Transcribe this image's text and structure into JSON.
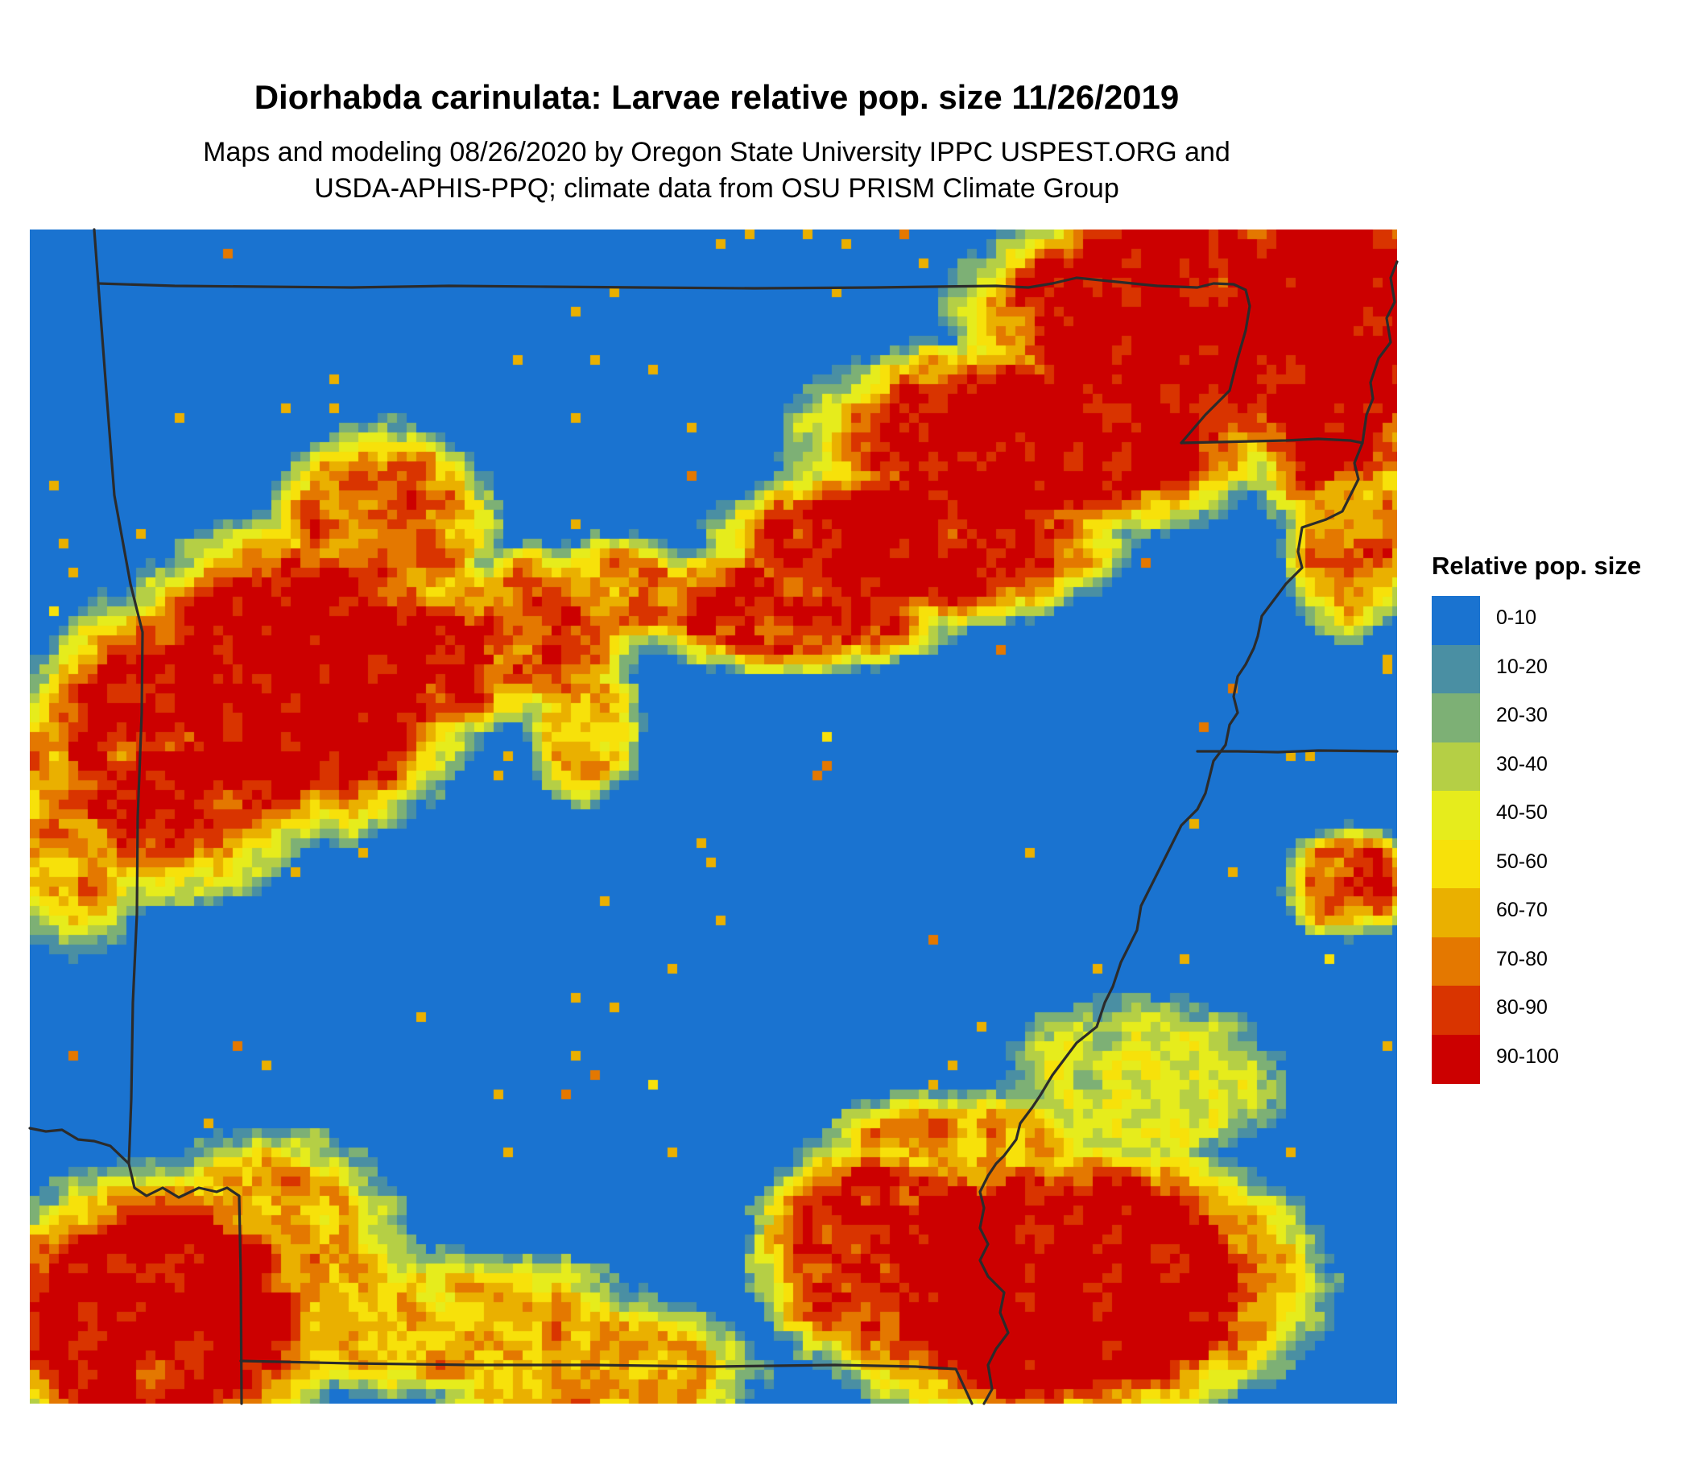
{
  "title": "Diorhabda carinulata: Larvae relative pop. size 11/26/2019",
  "subtitle_line1": "Maps and modeling 08/26/2020 by Oregon State University IPPC USPEST.ORG and",
  "subtitle_line2": "USDA-APHIS-PPQ; climate data from OSU PRISM Climate Group",
  "legend": {
    "title": "Relative pop. size",
    "items": [
      {
        "label": "0-10",
        "color": "#1a73d0"
      },
      {
        "label": "10-20",
        "color": "#4a8fa3"
      },
      {
        "label": "20-30",
        "color": "#7db075"
      },
      {
        "label": "30-40",
        "color": "#b5cf45"
      },
      {
        "label": "40-50",
        "color": "#e6ec1c"
      },
      {
        "label": "50-60",
        "color": "#f7e10a"
      },
      {
        "label": "60-70",
        "color": "#eab000"
      },
      {
        "label": "70-80",
        "color": "#e47800"
      },
      {
        "label": "80-90",
        "color": "#d93400"
      },
      {
        "label": "90-100",
        "color": "#cc0000"
      }
    ]
  },
  "map": {
    "background_class": "0-10",
    "regions": [
      {
        "name": "northeast-band",
        "classes": [
          "50-60",
          "80-90",
          "90-100",
          "70-80"
        ]
      },
      {
        "name": "west-central-cluster",
        "classes": [
          "90-100",
          "80-90",
          "50-60",
          "40-50",
          "20-30"
        ]
      },
      {
        "name": "southwest",
        "classes": [
          "90-100",
          "80-90",
          "50-60",
          "20-30"
        ]
      },
      {
        "name": "south-central",
        "classes": [
          "90-100",
          "80-90",
          "50-60",
          "20-30"
        ]
      },
      {
        "name": "east-edge",
        "classes": [
          "90-100",
          "50-60",
          "20-30"
        ]
      }
    ]
  }
}
